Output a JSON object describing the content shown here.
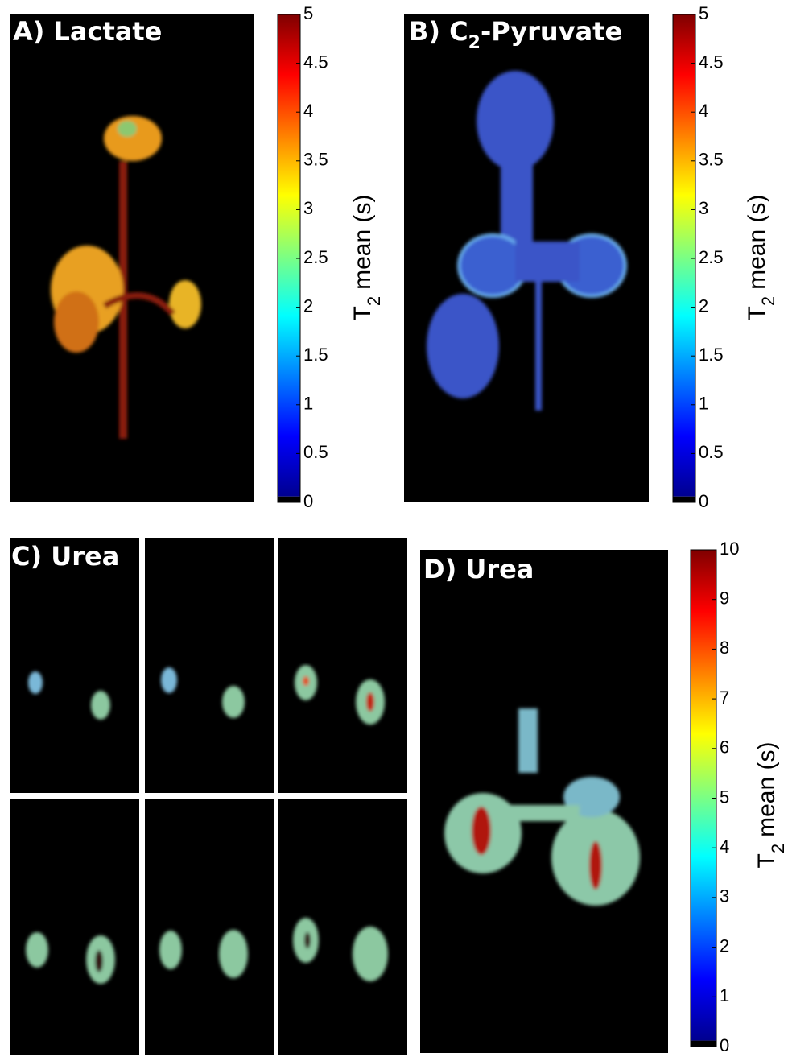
{
  "panels": [
    {
      "title": "A) Lactate",
      "colorbar": {
        "label": {
          "main": "T",
          "sub": "2",
          "rest": "mean (s)"
        },
        "lim": [
          0,
          5
        ],
        "ticks": [
          0,
          0.5,
          1,
          1.5,
          2,
          2.5,
          3,
          3.5,
          4,
          4.5,
          5
        ]
      }
    },
    {
      "title": {
        "main": "B) C",
        "sub": "2",
        "rest": "-Pyruvate"
      },
      "colorbar": {
        "label": {
          "main": "T",
          "sub": "2",
          "rest": "mean (s)"
        },
        "lim": [
          0,
          5
        ],
        "ticks": [
          0,
          0.5,
          1,
          1.5,
          2,
          2.5,
          3,
          3.5,
          4,
          4.5,
          5
        ]
      }
    },
    {
      "title": "C) Urea"
    },
    {
      "title": "D) Urea",
      "colorbar": {
        "label": {
          "main": "T",
          "sub": "2",
          "rest": "mean (s)"
        },
        "lim": [
          0,
          10
        ],
        "ticks": [
          0,
          1,
          2,
          3,
          4,
          5,
          6,
          7,
          8,
          9,
          10
        ]
      }
    }
  ]
}
